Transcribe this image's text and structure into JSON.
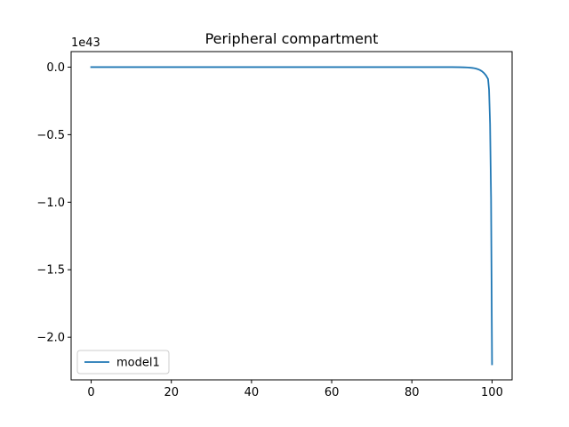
{
  "chart_data": {
    "type": "line",
    "title": "Peripheral compartment",
    "xlabel": "",
    "ylabel": "",
    "y_offset_label": "1e43",
    "xlim": [
      -5,
      105
    ],
    "ylim": [
      -2.315,
      0.115
    ],
    "x_ticks": [
      0,
      20,
      40,
      60,
      80,
      100
    ],
    "x_tick_labels": [
      "0",
      "20",
      "40",
      "60",
      "80",
      "100"
    ],
    "y_ticks": [
      0.0,
      -0.5,
      -1.0,
      -1.5,
      -2.0
    ],
    "y_tick_labels": [
      "0.0",
      "−0.5",
      "−1.0",
      "−1.5",
      "−2.0"
    ],
    "grid": false,
    "legend_position": "lower-left",
    "series": [
      {
        "name": "model1",
        "color": "#1f77b4",
        "x": [
          0,
          10,
          20,
          30,
          40,
          50,
          60,
          70,
          80,
          90,
          92,
          93,
          94,
          95,
          95.5,
          96,
          96.5,
          97,
          97.5,
          98,
          98.5,
          99,
          99.25,
          99.5,
          99.75,
          100
        ],
        "y": [
          0,
          0,
          0,
          0,
          0,
          0,
          0,
          0,
          0,
          0,
          -0.0007,
          -0.0014,
          -0.0028,
          -0.0055,
          -0.0078,
          -0.011,
          -0.0156,
          -0.022,
          -0.031,
          -0.044,
          -0.062,
          -0.088,
          -0.168,
          -0.42,
          -0.97,
          -2.2
        ]
      }
    ]
  }
}
